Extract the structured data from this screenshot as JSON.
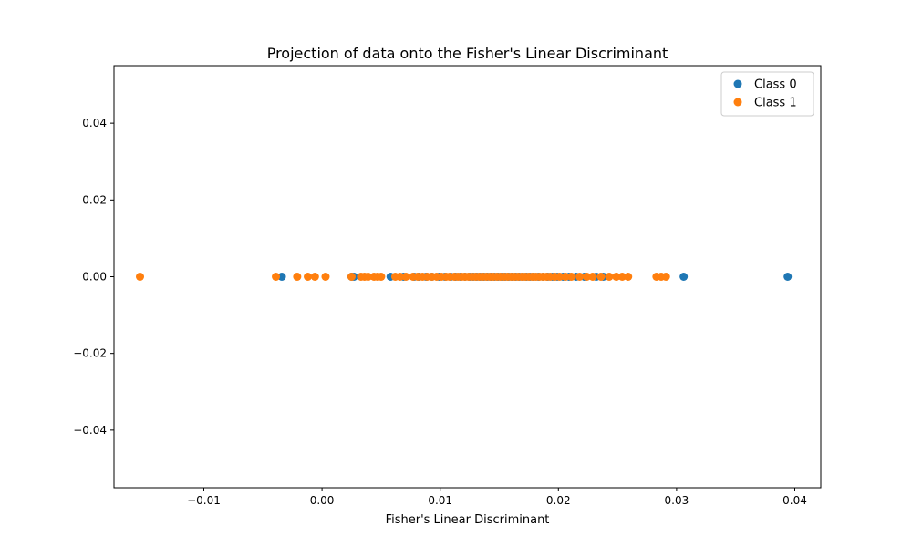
{
  "chart_data": {
    "type": "scatter",
    "title": "Projection of data onto the Fisher's Linear Discriminant",
    "xlabel": "Fisher's Linear Discriminant",
    "ylabel": "",
    "xlim": [
      -0.0176,
      0.0422
    ],
    "ylim": [
      -0.055,
      0.055
    ],
    "x_ticks": [
      -0.01,
      0.0,
      0.01,
      0.02,
      0.03,
      0.04
    ],
    "x_tick_labels": [
      "−0.01",
      "0.00",
      "0.01",
      "0.02",
      "0.03",
      "0.04"
    ],
    "y_ticks": [
      -0.04,
      -0.02,
      0.0,
      0.02,
      0.04
    ],
    "y_tick_labels": [
      "−0.04",
      "−0.02",
      "0.00",
      "0.02",
      "0.04"
    ],
    "grid": false,
    "legend_position": "top-right",
    "series": [
      {
        "name": "Class 0",
        "color": "#1f77b4",
        "x": [
          -0.0034,
          0.0025,
          0.0027,
          0.0058,
          0.0069,
          0.0078,
          0.0082,
          0.0088,
          0.0093,
          0.0099,
          0.0104,
          0.0109,
          0.0113,
          0.0117,
          0.0121,
          0.0125,
          0.0128,
          0.0131,
          0.0134,
          0.0137,
          0.014,
          0.0143,
          0.0146,
          0.0149,
          0.0152,
          0.0155,
          0.0158,
          0.0161,
          0.0164,
          0.0167,
          0.017,
          0.0173,
          0.0176,
          0.0179,
          0.0183,
          0.0187,
          0.0191,
          0.0195,
          0.0199,
          0.0204,
          0.0209,
          0.0215,
          0.0222,
          0.0232,
          0.0238,
          0.0306,
          0.0394
        ],
        "y": [
          0,
          0,
          0,
          0,
          0,
          0,
          0,
          0,
          0,
          0,
          0,
          0,
          0,
          0,
          0,
          0,
          0,
          0,
          0,
          0,
          0,
          0,
          0,
          0,
          0,
          0,
          0,
          0,
          0,
          0,
          0,
          0,
          0,
          0,
          0,
          0,
          0,
          0,
          0,
          0,
          0,
          0,
          0,
          0,
          0,
          0,
          0
        ]
      },
      {
        "name": "Class 1",
        "color": "#ff7f0e",
        "x": [
          -0.0154,
          -0.0039,
          -0.0021,
          -0.0012,
          -0.0006,
          0.0003,
          0.0025,
          0.0033,
          0.0036,
          0.0039,
          0.0044,
          0.0047,
          0.005,
          0.0062,
          0.0066,
          0.0071,
          0.0077,
          0.0081,
          0.0085,
          0.0089,
          0.0093,
          0.0097,
          0.0101,
          0.0105,
          0.0108,
          0.0112,
          0.0115,
          0.0118,
          0.0121,
          0.0124,
          0.0127,
          0.013,
          0.0133,
          0.0136,
          0.0139,
          0.0142,
          0.0145,
          0.0148,
          0.0151,
          0.0154,
          0.0157,
          0.016,
          0.0163,
          0.0166,
          0.0169,
          0.0172,
          0.0175,
          0.0178,
          0.0181,
          0.0184,
          0.0187,
          0.019,
          0.0193,
          0.0197,
          0.0201,
          0.0206,
          0.0211,
          0.0218,
          0.0224,
          0.0229,
          0.0236,
          0.0243,
          0.0249,
          0.0254,
          0.0259,
          0.0283,
          0.0287,
          0.0291
        ],
        "y": [
          0,
          0,
          0,
          0,
          0,
          0,
          0,
          0,
          0,
          0,
          0,
          0,
          0,
          0,
          0,
          0,
          0,
          0,
          0,
          0,
          0,
          0,
          0,
          0,
          0,
          0,
          0,
          0,
          0,
          0,
          0,
          0,
          0,
          0,
          0,
          0,
          0,
          0,
          0,
          0,
          0,
          0,
          0,
          0,
          0,
          0,
          0,
          0,
          0,
          0,
          0,
          0,
          0,
          0,
          0,
          0,
          0,
          0,
          0,
          0,
          0,
          0,
          0,
          0,
          0,
          0,
          0,
          0
        ]
      }
    ]
  }
}
